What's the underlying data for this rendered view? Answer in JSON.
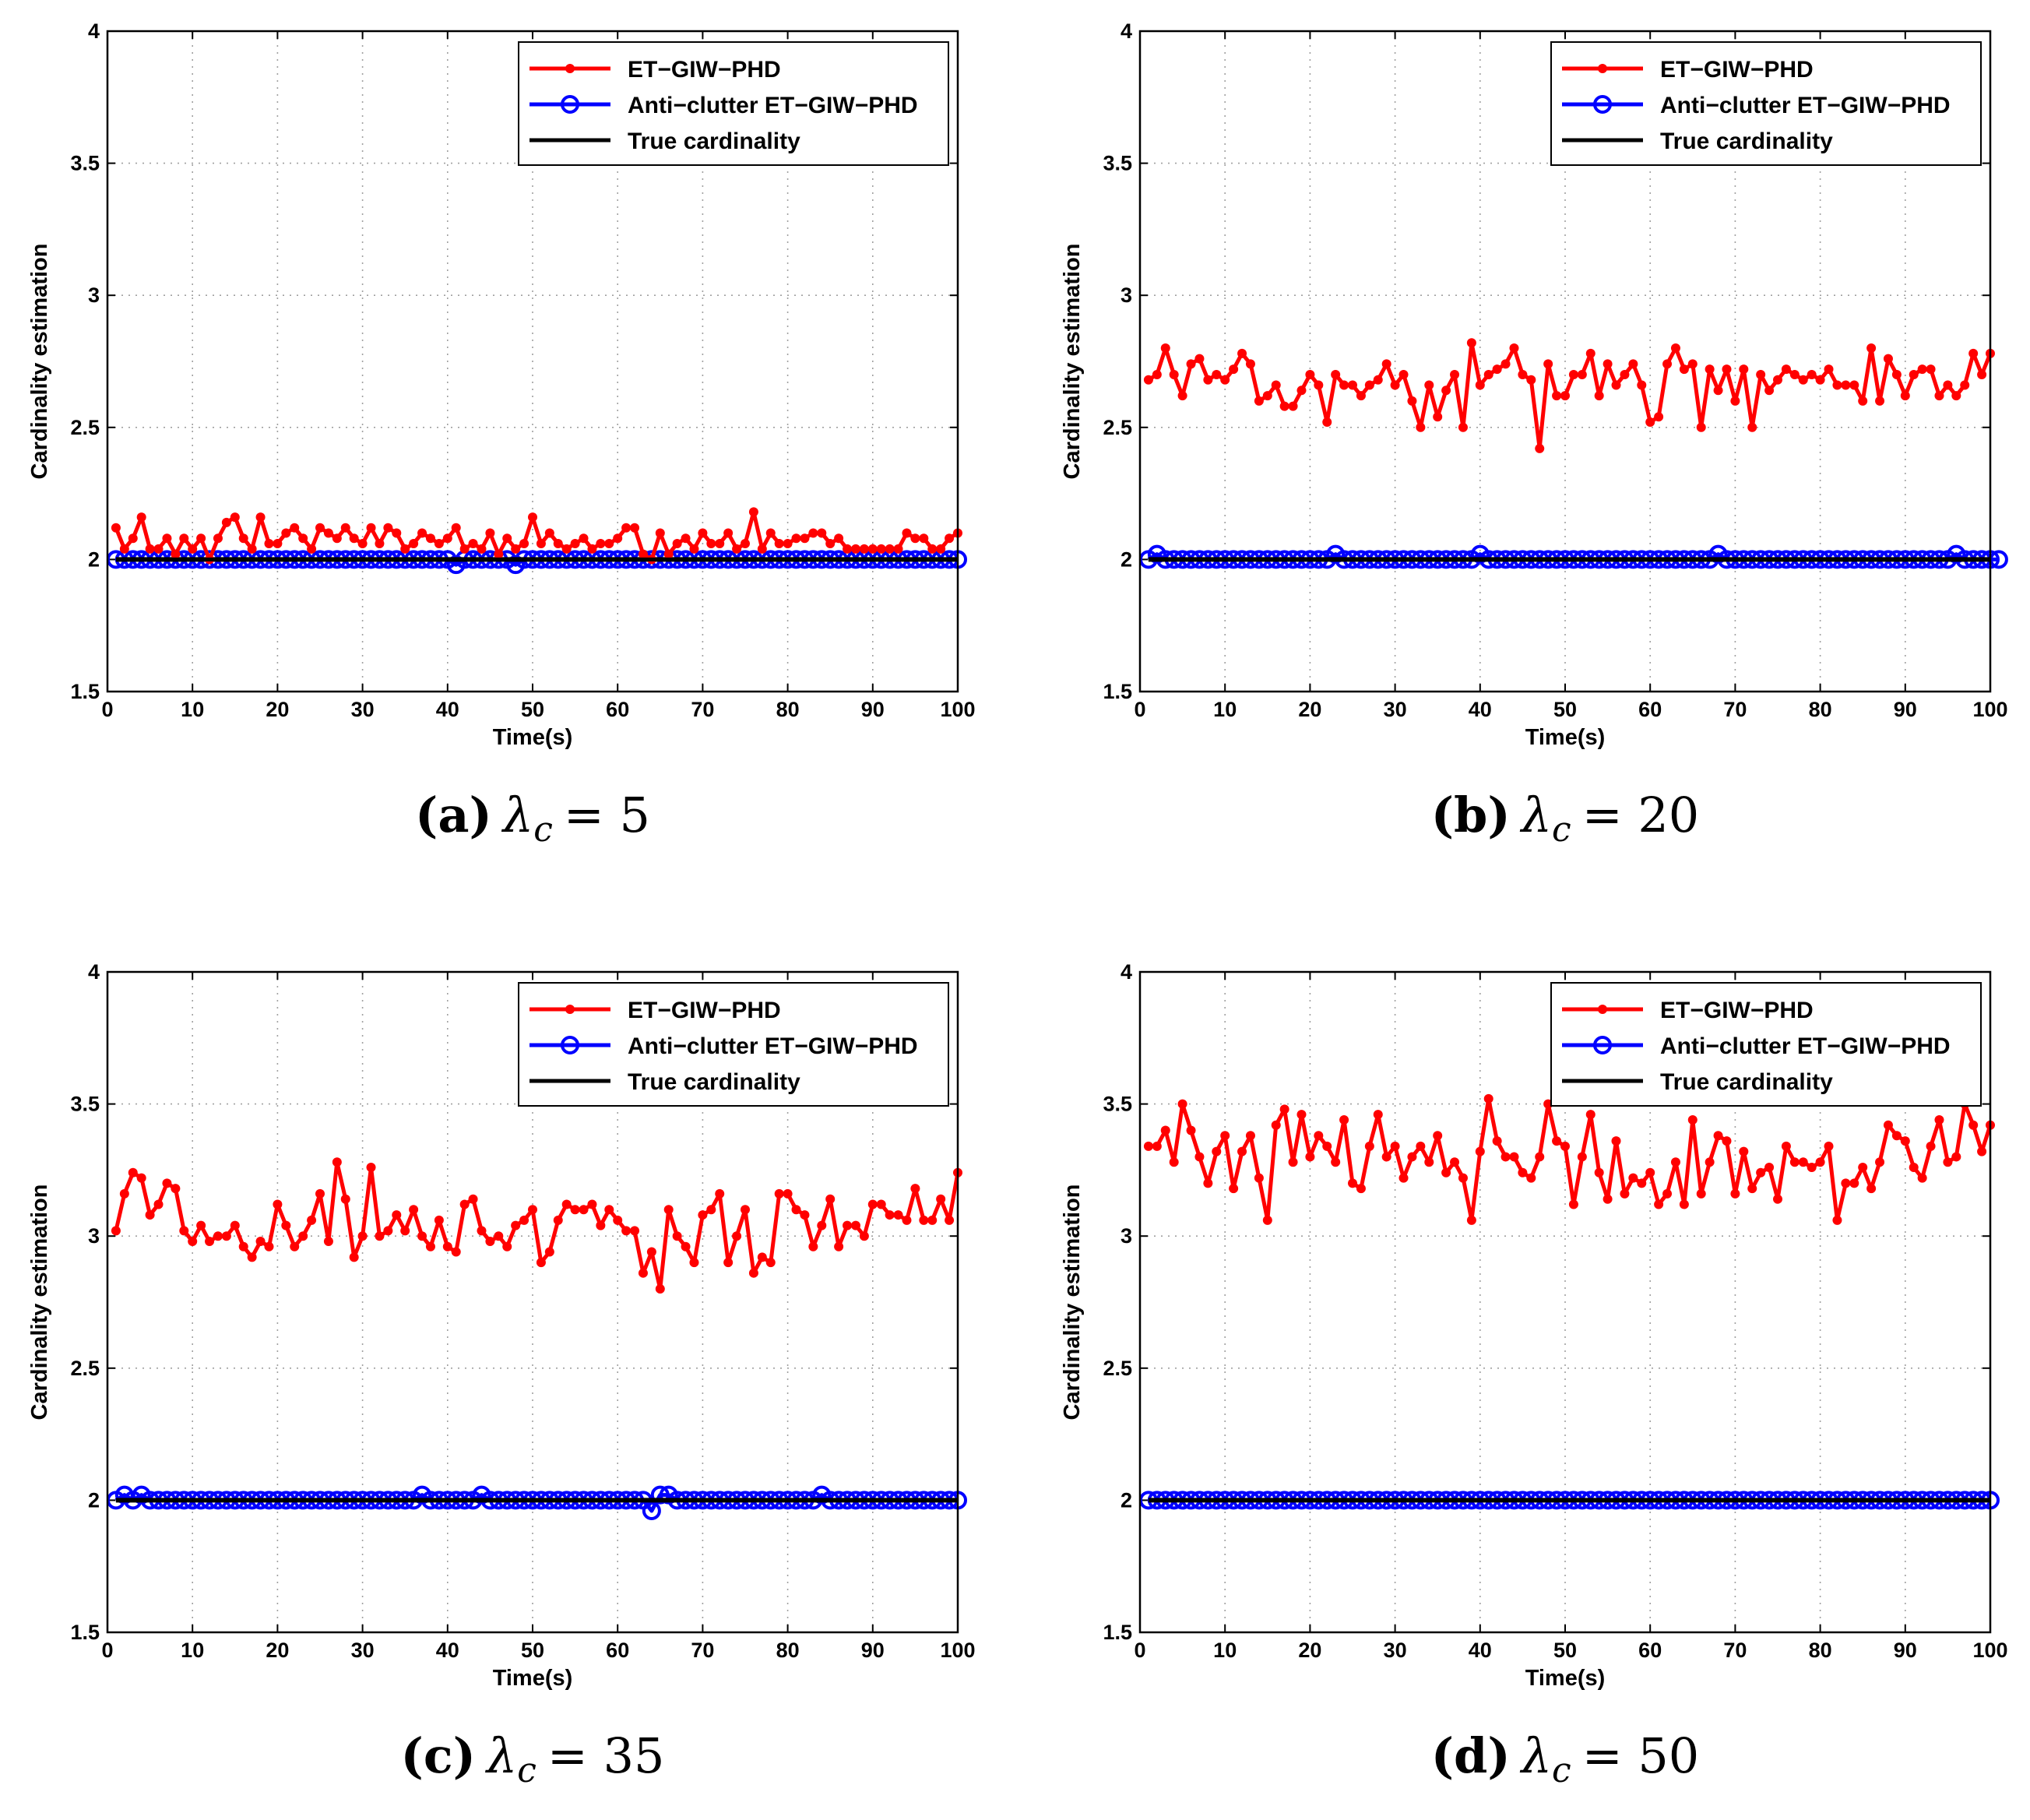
{
  "legend_labels": [
    "ET−GIW−PHD",
    "Anti−clutter ET−GIW−PHD",
    "True cardinality"
  ],
  "colors": {
    "et_giw_phd": "#ff0000",
    "anti_clutter": "#0000ff",
    "true_cardinality": "#000000"
  },
  "chart_data": [
    {
      "type": "line",
      "caption_tag": "(a)",
      "caption_lambda": "λ",
      "caption_sub": "c",
      "caption_value": "= 5",
      "xlabel": "Time(s)",
      "ylabel": "Cardinality estimation",
      "xlim": [
        0,
        100
      ],
      "ylim": [
        1.5,
        4
      ],
      "xticks": [
        0,
        10,
        20,
        30,
        40,
        50,
        60,
        70,
        80,
        90,
        100
      ],
      "yticks": [
        1.5,
        2,
        2.5,
        3,
        3.5,
        4
      ],
      "grid": true,
      "legend_position": "top-right",
      "series": [
        {
          "name": "ET−GIW−PHD",
          "marker": "dot",
          "x_start": 1,
          "x_step": 1,
          "values": [
            2.12,
            2.04,
            2.08,
            2.16,
            2.04,
            2.04,
            2.08,
            2.02,
            2.08,
            2.04,
            2.08,
            2.0,
            2.08,
            2.14,
            2.16,
            2.08,
            2.04,
            2.16,
            2.06,
            2.06,
            2.1,
            2.12,
            2.08,
            2.04,
            2.12,
            2.1,
            2.08,
            2.12,
            2.08,
            2.06,
            2.12,
            2.06,
            2.12,
            2.1,
            2.04,
            2.06,
            2.1,
            2.08,
            2.06,
            2.08,
            2.12,
            2.04,
            2.06,
            2.04,
            2.1,
            2.02,
            2.08,
            2.04,
            2.06,
            2.16,
            2.06,
            2.1,
            2.06,
            2.04,
            2.06,
            2.08,
            2.04,
            2.06,
            2.06,
            2.08,
            2.12,
            2.12,
            2.02,
            2.0,
            2.1,
            2.02,
            2.06,
            2.08,
            2.04,
            2.1,
            2.06,
            2.06,
            2.1,
            2.04,
            2.06,
            2.18,
            2.04,
            2.1,
            2.06,
            2.06,
            2.08,
            2.08,
            2.1,
            2.1,
            2.06,
            2.08,
            2.04,
            2.04,
            2.04,
            2.04,
            2.04,
            2.04,
            2.04,
            2.1,
            2.08,
            2.08,
            2.04,
            2.04,
            2.08,
            2.1
          ]
        },
        {
          "name": "Anti−clutter ET−GIW−PHD",
          "marker": "circle",
          "x_start": 1,
          "x_step": 1,
          "values": [
            2,
            2,
            2,
            2,
            2,
            2,
            2,
            2,
            2,
            2,
            2,
            2,
            2,
            2,
            2,
            2,
            2,
            2,
            2,
            2,
            2,
            2,
            2,
            2,
            2,
            2,
            2,
            2,
            2,
            2,
            2,
            2,
            2,
            2,
            2,
            2,
            2,
            2,
            2,
            2,
            1.98,
            2,
            2,
            2,
            2,
            2,
            2,
            1.98,
            2,
            2,
            2,
            2,
            2,
            2,
            2,
            2,
            2,
            2,
            2,
            2,
            2,
            2,
            2,
            2,
            2,
            2,
            2,
            2,
            2,
            2,
            2,
            2,
            2,
            2,
            2,
            2,
            2,
            2,
            2,
            2,
            2,
            2,
            2,
            2,
            2,
            2,
            2,
            2,
            2,
            2,
            2,
            2,
            2,
            2,
            2,
            2,
            2,
            2,
            2,
            2
          ]
        },
        {
          "name": "True cardinality",
          "marker": "none",
          "x": [
            1,
            100
          ],
          "values": [
            2,
            2
          ]
        }
      ]
    },
    {
      "type": "line",
      "caption_tag": "(b)",
      "caption_lambda": "λ",
      "caption_sub": "c",
      "caption_value": "= 20",
      "xlabel": "Time(s)",
      "ylabel": "Cardinality estimation",
      "xlim": [
        0,
        100
      ],
      "ylim": [
        1.5,
        4
      ],
      "xticks": [
        0,
        10,
        20,
        30,
        40,
        50,
        60,
        70,
        80,
        90,
        100
      ],
      "yticks": [
        1.5,
        2,
        2.5,
        3,
        3.5,
        4
      ],
      "grid": true,
      "legend_position": "top-right",
      "series": [
        {
          "name": "ET−GIW−PHD",
          "marker": "dot",
          "x_start": 1,
          "x_step": 1,
          "values": [
            2.68,
            2.7,
            2.8,
            2.7,
            2.62,
            2.74,
            2.76,
            2.68,
            2.7,
            2.68,
            2.72,
            2.78,
            2.74,
            2.6,
            2.62,
            2.66,
            2.58,
            2.58,
            2.64,
            2.7,
            2.66,
            2.52,
            2.7,
            2.66,
            2.66,
            2.62,
            2.66,
            2.68,
            2.74,
            2.66,
            2.7,
            2.6,
            2.5,
            2.66,
            2.54,
            2.64,
            2.7,
            2.5,
            2.82,
            2.66,
            2.7,
            2.72,
            2.74,
            2.8,
            2.7,
            2.68,
            2.42,
            2.74,
            2.62,
            2.62,
            2.7,
            2.7,
            2.78,
            2.62,
            2.74,
            2.66,
            2.7,
            2.74,
            2.66,
            2.52,
            2.54,
            2.74,
            2.8,
            2.72,
            2.74,
            2.5,
            2.72,
            2.64,
            2.72,
            2.6,
            2.72,
            2.5,
            2.7,
            2.64,
            2.68,
            2.72,
            2.7,
            2.68,
            2.7,
            2.68,
            2.72,
            2.66,
            2.66,
            2.66,
            2.6,
            2.8,
            2.6,
            2.76,
            2.7,
            2.62,
            2.7,
            2.72,
            2.72,
            2.62,
            2.66,
            2.62,
            2.66,
            2.78,
            2.7,
            2.78
          ]
        },
        {
          "name": "Anti−clutter ET−GIW−PHD",
          "marker": "circle",
          "x_start": 1,
          "x_step": 1,
          "values": [
            2,
            2.02,
            2,
            2,
            2,
            2,
            2,
            2,
            2,
            2,
            2,
            2,
            2,
            2,
            2,
            2,
            2,
            2,
            2,
            2,
            2,
            2,
            2.02,
            2,
            2,
            2,
            2,
            2,
            2,
            2,
            2,
            2,
            2,
            2,
            2,
            2,
            2,
            2,
            2,
            2.02,
            2,
            2,
            2,
            2,
            2,
            2,
            2,
            2,
            2,
            2,
            2,
            2,
            2,
            2,
            2,
            2,
            2,
            2,
            2,
            2,
            2,
            2,
            2,
            2,
            2,
            2,
            2,
            2.02,
            2,
            2,
            2,
            2,
            2,
            2,
            2,
            2,
            2,
            2,
            2,
            2,
            2,
            2,
            2,
            2,
            2,
            2,
            2,
            2,
            2,
            2,
            2,
            2,
            2,
            2,
            2,
            2.02,
            2,
            2,
            2,
            2,
            2
          ]
        },
        {
          "name": "True cardinality",
          "marker": "none",
          "x": [
            1,
            100
          ],
          "values": [
            2,
            2
          ]
        }
      ]
    },
    {
      "type": "line",
      "caption_tag": "(c)",
      "caption_lambda": "λ",
      "caption_sub": "c",
      "caption_value": "= 35",
      "xlabel": "Time(s)",
      "ylabel": "Cardinality estimation",
      "xlim": [
        0,
        100
      ],
      "ylim": [
        1.5,
        4
      ],
      "xticks": [
        0,
        10,
        20,
        30,
        40,
        50,
        60,
        70,
        80,
        90,
        100
      ],
      "yticks": [
        1.5,
        2,
        2.5,
        3,
        3.5,
        4
      ],
      "grid": true,
      "legend_position": "top-right",
      "series": [
        {
          "name": "ET−GIW−PHD",
          "marker": "dot",
          "x_start": 1,
          "x_step": 1,
          "values": [
            3.02,
            3.16,
            3.24,
            3.22,
            3.08,
            3.12,
            3.2,
            3.18,
            3.02,
            2.98,
            3.04,
            2.98,
            3.0,
            3.0,
            3.04,
            2.96,
            2.92,
            2.98,
            2.96,
            3.12,
            3.04,
            2.96,
            3.0,
            3.06,
            3.16,
            2.98,
            3.28,
            3.14,
            2.92,
            3.0,
            3.26,
            3.0,
            3.02,
            3.08,
            3.02,
            3.1,
            3.0,
            2.96,
            3.06,
            2.96,
            2.94,
            3.12,
            3.14,
            3.02,
            2.98,
            3.0,
            2.96,
            3.04,
            3.06,
            3.1,
            2.9,
            2.94,
            3.06,
            3.12,
            3.1,
            3.1,
            3.12,
            3.04,
            3.1,
            3.06,
            3.02,
            3.02,
            2.86,
            2.94,
            2.8,
            3.1,
            3.0,
            2.96,
            2.9,
            3.08,
            3.1,
            3.16,
            2.9,
            3.0,
            3.1,
            2.86,
            2.92,
            2.9,
            3.16,
            3.16,
            3.1,
            3.08,
            2.96,
            3.04,
            3.14,
            2.96,
            3.04,
            3.04,
            3.0,
            3.12,
            3.12,
            3.08,
            3.08,
            3.06,
            3.18,
            3.06,
            3.06,
            3.14,
            3.06,
            3.24
          ]
        },
        {
          "name": "Anti−clutter ET−GIW−PHD",
          "marker": "circle",
          "x_start": 1,
          "x_step": 1,
          "values": [
            2,
            2.02,
            2,
            2.02,
            2,
            2,
            2,
            2,
            2,
            2,
            2,
            2,
            2,
            2,
            2,
            2,
            2,
            2,
            2,
            2,
            2,
            2,
            2,
            2,
            2,
            2,
            2,
            2,
            2,
            2,
            2,
            2,
            2,
            2,
            2,
            2,
            2.02,
            2,
            2,
            2,
            2,
            2,
            2,
            2.02,
            2,
            2,
            2,
            2,
            2,
            2,
            2,
            2,
            2,
            2,
            2,
            2,
            2,
            2,
            2,
            2,
            2,
            2,
            2,
            1.96,
            2.02,
            2.02,
            2,
            2,
            2,
            2,
            2,
            2,
            2,
            2,
            2,
            2,
            2,
            2,
            2,
            2,
            2,
            2,
            2,
            2.02,
            2,
            2,
            2,
            2,
            2,
            2,
            2,
            2,
            2,
            2,
            2,
            2,
            2,
            2,
            2,
            2
          ]
        },
        {
          "name": "True cardinality",
          "marker": "none",
          "x": [
            1,
            100
          ],
          "values": [
            2,
            2
          ]
        }
      ]
    },
    {
      "type": "line",
      "caption_tag": "(d)",
      "caption_lambda": "λ",
      "caption_sub": "c",
      "caption_value": "= 50",
      "xlabel": "Time(s)",
      "ylabel": "Cardinality estimation",
      "xlim": [
        0,
        100
      ],
      "ylim": [
        1.5,
        4
      ],
      "xticks": [
        0,
        10,
        20,
        30,
        40,
        50,
        60,
        70,
        80,
        90,
        100
      ],
      "yticks": [
        1.5,
        2,
        2.5,
        3,
        3.5,
        4
      ],
      "grid": true,
      "legend_position": "top-right",
      "series": [
        {
          "name": "ET−GIW−PHD",
          "marker": "dot",
          "x_start": 1,
          "x_step": 1,
          "values": [
            3.34,
            3.34,
            3.4,
            3.28,
            3.5,
            3.4,
            3.3,
            3.2,
            3.32,
            3.38,
            3.18,
            3.32,
            3.38,
            3.22,
            3.06,
            3.42,
            3.48,
            3.28,
            3.46,
            3.3,
            3.38,
            3.34,
            3.28,
            3.44,
            3.2,
            3.18,
            3.34,
            3.46,
            3.3,
            3.34,
            3.22,
            3.3,
            3.34,
            3.28,
            3.38,
            3.24,
            3.28,
            3.22,
            3.06,
            3.32,
            3.52,
            3.36,
            3.3,
            3.3,
            3.24,
            3.22,
            3.3,
            3.5,
            3.36,
            3.34,
            3.12,
            3.3,
            3.46,
            3.24,
            3.14,
            3.36,
            3.16,
            3.22,
            3.2,
            3.24,
            3.12,
            3.16,
            3.28,
            3.12,
            3.44,
            3.16,
            3.28,
            3.38,
            3.36,
            3.16,
            3.32,
            3.18,
            3.24,
            3.26,
            3.14,
            3.34,
            3.28,
            3.28,
            3.26,
            3.28,
            3.34,
            3.06,
            3.2,
            3.2,
            3.26,
            3.18,
            3.28,
            3.42,
            3.38,
            3.36,
            3.26,
            3.22,
            3.34,
            3.44,
            3.28,
            3.3,
            3.5,
            3.42,
            3.32,
            3.42
          ]
        },
        {
          "name": "Anti−clutter ET−GIW−PHD",
          "marker": "circle",
          "x_start": 1,
          "x_step": 1,
          "values": [
            2,
            2,
            2,
            2,
            2,
            2,
            2,
            2,
            2,
            2,
            2,
            2,
            2,
            2,
            2,
            2,
            2,
            2,
            2,
            2,
            2,
            2,
            2,
            2,
            2,
            2,
            2,
            2,
            2,
            2,
            2,
            2,
            2,
            2,
            2,
            2,
            2,
            2,
            2,
            2,
            2,
            2,
            2,
            2,
            2,
            2,
            2,
            2,
            2,
            2,
            2,
            2,
            2,
            2,
            2,
            2,
            2,
            2,
            2,
            2,
            2,
            2,
            2,
            2,
            2,
            2,
            2,
            2,
            2,
            2,
            2,
            2,
            2,
            2,
            2,
            2,
            2,
            2,
            2,
            2,
            2,
            2,
            2,
            2,
            2,
            2,
            2,
            2,
            2,
            2,
            2,
            2,
            2,
            2,
            2,
            2,
            2,
            2,
            2,
            2
          ]
        },
        {
          "name": "True cardinality",
          "marker": "none",
          "x": [
            1,
            100
          ],
          "values": [
            2,
            2
          ]
        }
      ]
    }
  ]
}
